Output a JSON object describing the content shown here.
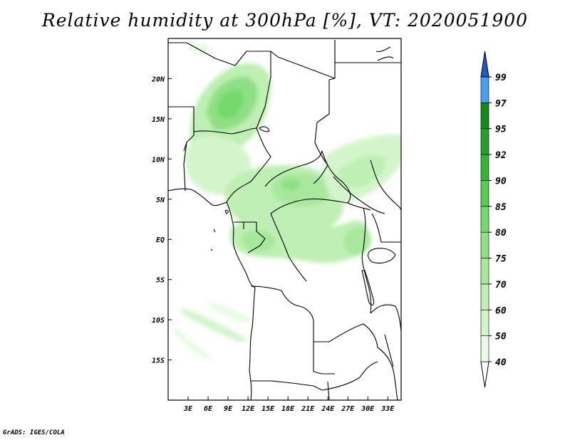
{
  "title": "Relative humidity at 300hPa [%], VT: 2020051900",
  "credit": "GrADS: IGES/COLA",
  "map": {
    "lon_range": [
      0,
      35
    ],
    "lat_range": [
      -20,
      25
    ],
    "x_ticks": [
      "3E",
      "6E",
      "9E",
      "12E",
      "15E",
      "18E",
      "21E",
      "24E",
      "27E",
      "30E",
      "33E"
    ],
    "x_tick_values": [
      3,
      6,
      9,
      12,
      15,
      18,
      21,
      24,
      27,
      30,
      33
    ],
    "y_ticks": [
      "20N",
      "15N",
      "10N",
      "5N",
      "EQ",
      "5S",
      "10S",
      "15S"
    ],
    "y_tick_values": [
      20,
      15,
      10,
      5,
      0,
      -5,
      -10,
      -15
    ]
  },
  "colorbar": {
    "labels": [
      "40",
      "50",
      "60",
      "70",
      "75",
      "80",
      "85",
      "90",
      "92",
      "95",
      "97",
      "99"
    ],
    "levels": [
      40,
      50,
      60,
      70,
      75,
      80,
      85,
      90,
      92,
      95,
      97,
      99
    ],
    "colors": [
      "#e8fae4",
      "#d4f5cc",
      "#bfefb4",
      "#a8e89c",
      "#8fe084",
      "#74d86c",
      "#56cc52",
      "#36b43a",
      "#22a028",
      "#148a1a",
      "#4a9ef0",
      "#2a7ee0",
      "#1a5ec0"
    ]
  }
}
